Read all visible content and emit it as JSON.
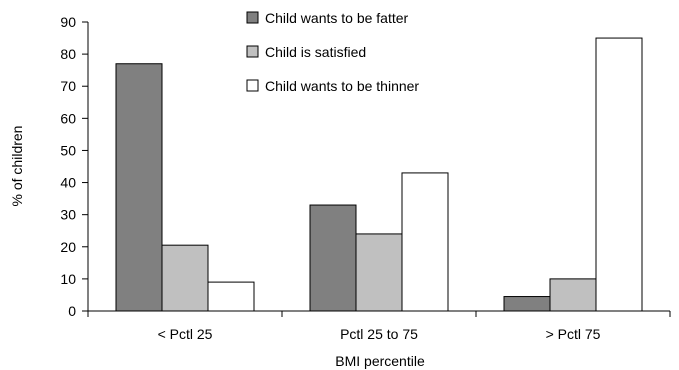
{
  "chart_data": {
    "type": "bar",
    "categories": [
      "< Pctl 25",
      "Pctl 25 to 75",
      "> Pctl 75"
    ],
    "series": [
      {
        "name": "Child wants to be fatter",
        "values": [
          77,
          33,
          4.5
        ],
        "color": "#808080"
      },
      {
        "name": "Child is satisfied",
        "values": [
          20.5,
          24,
          10
        ],
        "color": "#c0c0c0"
      },
      {
        "name": "Child wants to be thinner",
        "values": [
          9,
          43,
          85
        ],
        "color": "#ffffff"
      }
    ],
    "xlabel": "BMI percentile",
    "ylabel": "% of children",
    "ylim": [
      0,
      90
    ],
    "yticks": [
      "0",
      "10",
      "20",
      "30",
      "40",
      "50",
      "60",
      "70",
      "80",
      "90"
    ],
    "grid": false,
    "legend": "top-center"
  }
}
